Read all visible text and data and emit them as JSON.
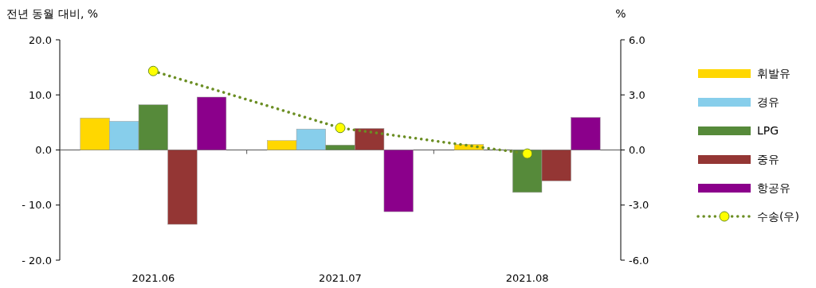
{
  "chart_data": {
    "type": "bar",
    "ylabel": "전년 동월 대비, %",
    "y2label": "%",
    "categories": [
      "2021.06",
      "2021.07",
      "2021.08"
    ],
    "series": [
      {
        "name": "휘발유",
        "color": "#ffd700",
        "values": [
          5.8,
          1.7,
          1.0
        ]
      },
      {
        "name": "경유",
        "color": "#87ceeb",
        "values": [
          5.2,
          3.8,
          0
        ]
      },
      {
        "name": "LPG",
        "color": "#568a3a",
        "values": [
          8.2,
          0.9,
          -7.7
        ]
      },
      {
        "name": "중유",
        "color": "#943634",
        "values": [
          -13.5,
          3.9,
          -5.6
        ]
      },
      {
        "name": "항공유",
        "color": "#8b008b",
        "values": [
          9.6,
          -11.2,
          5.9
        ]
      },
      {
        "name": "수송(우)",
        "type": "line",
        "axis": "y2",
        "color": "#6b8e23",
        "values": [
          4.3,
          1.2,
          -0.2
        ],
        "marker": "circle",
        "line_style": "dotted"
      }
    ],
    "ylim": [
      -20,
      20
    ],
    "yticks": [
      {
        "value": -20,
        "label": "- 20.0"
      },
      {
        "value": -10,
        "label": "- 10.0"
      },
      {
        "value": 0,
        "label": "0.0"
      },
      {
        "value": 10,
        "label": "10.0"
      },
      {
        "value": 20,
        "label": "20.0"
      }
    ],
    "y2lim": [
      -6,
      6
    ],
    "y2ticks": [
      {
        "value": -6,
        "label": "-6.0"
      },
      {
        "value": -3,
        "label": "-3.0"
      },
      {
        "value": 0,
        "label": "0.0"
      },
      {
        "value": 3,
        "label": "3.0"
      },
      {
        "value": 6,
        "label": "6.0"
      }
    ],
    "legend": "right"
  }
}
